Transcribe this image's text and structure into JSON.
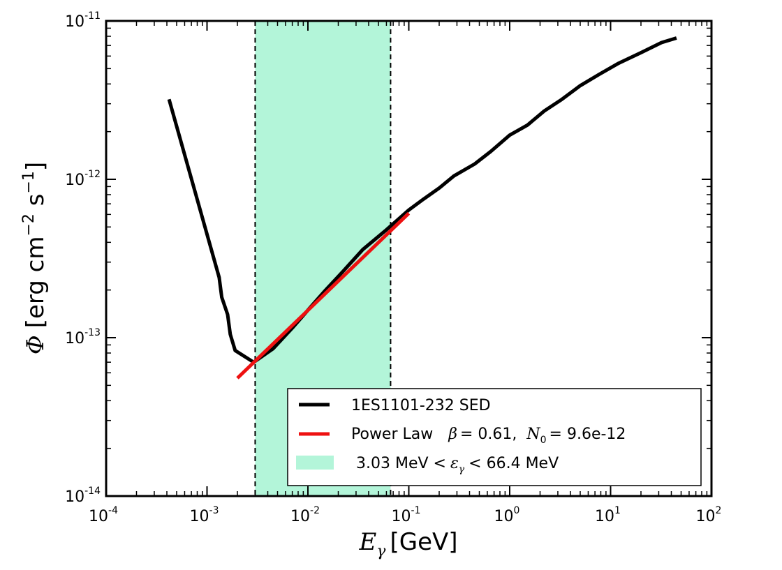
{
  "chart_data": {
    "type": "line",
    "x_scale": "log",
    "y_scale": "log",
    "xlim": [
      0.0001,
      100
    ],
    "ylim": [
      1e-14,
      1e-11
    ],
    "xlabel": "E_γ [GeV]",
    "xlabel_parts": {
      "symbol": "E",
      "subscript": "γ",
      "unit": "[GeV]"
    },
    "ylabel": "Φ [erg cm^-2 s^-1]",
    "ylabel_parts": {
      "symbol": "Φ",
      "text1": "[erg cm",
      "sup1": "−2",
      "text2": " s",
      "sup2": "−1",
      "text3": "]"
    },
    "x_ticks": [
      {
        "base": "10",
        "exp": "-4"
      },
      {
        "base": "10",
        "exp": "-3"
      },
      {
        "base": "10",
        "exp": "-2"
      },
      {
        "base": "10",
        "exp": "-1"
      },
      {
        "base": "10",
        "exp": "0"
      },
      {
        "base": "10",
        "exp": "1"
      },
      {
        "base": "10",
        "exp": "2"
      }
    ],
    "y_ticks": [
      {
        "base": "10",
        "exp": "-14"
      },
      {
        "base": "10",
        "exp": "-13"
      },
      {
        "base": "10",
        "exp": "-12"
      },
      {
        "base": "10",
        "exp": "-11"
      }
    ],
    "legend_position": "lower-right",
    "series": [
      {
        "name": "1ES1101-232 SED",
        "color": "#000000",
        "points": [
          [
            0.00042,
            3.2e-12
          ],
          [
            0.00132,
            2.4e-13
          ],
          [
            0.0014,
            1.8e-13
          ],
          [
            0.0016,
            1.4e-13
          ],
          [
            0.0017,
            1.05e-13
          ],
          [
            0.0019,
            8.3e-14
          ],
          [
            0.0029,
            7e-14
          ],
          [
            0.0045,
            8.5e-14
          ],
          [
            0.007,
            1.15e-13
          ],
          [
            0.011,
            1.6e-13
          ],
          [
            0.015,
            2e-13
          ],
          [
            0.022,
            2.6e-13
          ],
          [
            0.035,
            3.6e-13
          ],
          [
            0.06,
            4.8e-13
          ],
          [
            0.1,
            6.4e-13
          ],
          [
            0.14,
            7.5e-13
          ],
          [
            0.2,
            8.8e-13
          ],
          [
            0.28,
            1.05e-12
          ],
          [
            0.45,
            1.25e-12
          ],
          [
            0.65,
            1.5e-12
          ],
          [
            1.0,
            1.9e-12
          ],
          [
            1.5,
            2.2e-12
          ],
          [
            2.2,
            2.7e-12
          ],
          [
            3.3,
            3.2e-12
          ],
          [
            5.0,
            3.9e-12
          ],
          [
            7.7,
            4.6e-12
          ],
          [
            12,
            5.4e-12
          ],
          [
            20,
            6.3e-12
          ],
          [
            32,
            7.3e-12
          ],
          [
            45,
            7.8e-12
          ]
        ]
      },
      {
        "name": "Power Law",
        "legend_extra": {
          "beta_symbol": "β",
          "beta_value": "= 0.61,",
          "n_symbol": "N",
          "n_subscript": "0",
          "n_value": "= 9.6e-12"
        },
        "color": "#ee1111",
        "beta": 0.61,
        "N0": 9.6e-12,
        "points": [
          [
            0.002,
            5.55e-14
          ],
          [
            0.1,
            6.1e-13
          ]
        ]
      }
    ],
    "band": {
      "x_range": [
        0.003,
        0.066
      ],
      "color": "#b3f5d9",
      "legend_parts": {
        "left": "3.03 MeV <",
        "symbol": "ε",
        "subscript": "γ",
        "right": "< 66.4 MeV"
      },
      "label": "3.03 MeV < ε_γ < 66.4 MeV"
    }
  }
}
